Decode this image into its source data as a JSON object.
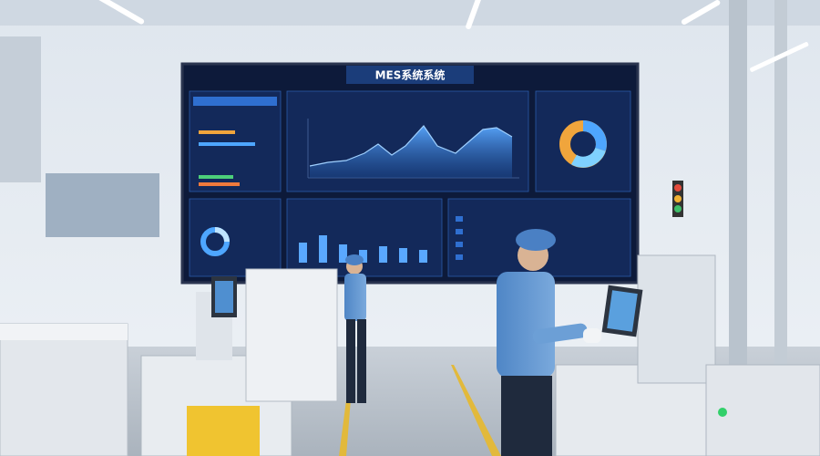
{
  "screen": {
    "title": "MES系统系统"
  }
}
